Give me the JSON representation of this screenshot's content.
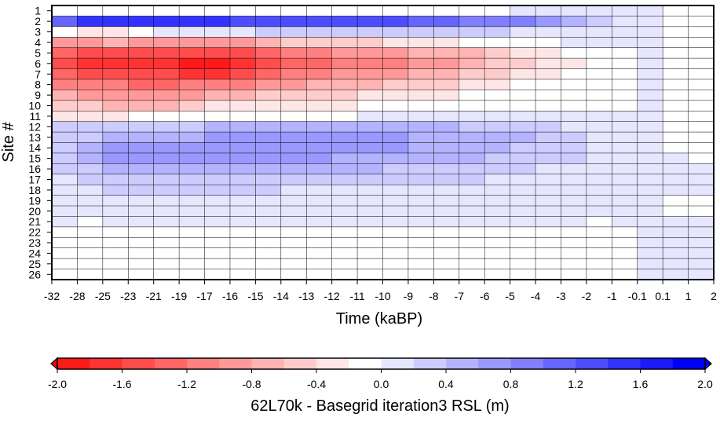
{
  "chart_data": {
    "type": "heatmap",
    "title": "",
    "xlabel": "Time (kaBP)",
    "ylabel": "Site #",
    "x_tick_labels": [
      "-32",
      "-28",
      "-25",
      "-23",
      "-21",
      "-19",
      "-17",
      "-16",
      "-15",
      "-14",
      "-13",
      "-12",
      "-11",
      "-10",
      "-9",
      "-8",
      "-7",
      "-6",
      "-5",
      "-4",
      "-3",
      "-2",
      "-1",
      "-0.1",
      "0.1",
      "1",
      "2"
    ],
    "y_tick_labels": [
      "1",
      "2",
      "3",
      "4",
      "5",
      "6",
      "7",
      "8",
      "9",
      "10",
      "11",
      "12",
      "13",
      "14",
      "15",
      "16",
      "17",
      "18",
      "19",
      "20",
      "21",
      "22",
      "23",
      "24",
      "25",
      "26"
    ],
    "grid": true,
    "colorbar": {
      "label": "62L70k - Basegrid iteration3 RSL (m)",
      "min": -2.0,
      "max": 2.0,
      "step": 0.2,
      "tick_labels": [
        "-2.0",
        "-1.6",
        "-1.2",
        "-0.8",
        "-0.4",
        "0.0",
        "0.4",
        "0.8",
        "1.2",
        "1.6",
        "2.0"
      ],
      "colors": [
        "#ff0000",
        "#ff1a1a",
        "#ff3333",
        "#ff4d4d",
        "#ff6666",
        "#ff8080",
        "#ff9999",
        "#ffb3b3",
        "#ffcccc",
        "#ffe6e6",
        "#ffffff",
        "#e6e6ff",
        "#ccccff",
        "#b3b3ff",
        "#9999ff",
        "#8080ff",
        "#6666ff",
        "#4d4dff",
        "#3333ff",
        "#1a1aff",
        "#0000ff"
      ]
    },
    "values": [
      [
        -0.1,
        -0.1,
        -0.1,
        -0.1,
        -0.1,
        -0.1,
        -0.1,
        -0.1,
        -0.1,
        -0.1,
        -0.1,
        -0.1,
        -0.1,
        -0.1,
        -0.1,
        -0.1,
        -0.1,
        -0.1,
        0.1,
        0.1,
        0.1,
        0.1,
        0.1,
        0.1,
        -0.1,
        -0.1
      ],
      [
        1.1,
        1.5,
        1.5,
        1.5,
        1.5,
        1.5,
        1.5,
        1.3,
        1.3,
        1.3,
        1.3,
        1.3,
        1.3,
        1.3,
        1.1,
        1.1,
        0.9,
        0.9,
        0.9,
        0.7,
        0.5,
        0.3,
        0.1,
        0.1,
        -0.1,
        -0.1
      ],
      [
        -0.1,
        -0.3,
        -0.3,
        -0.1,
        0.1,
        0.1,
        0.1,
        0.1,
        0.3,
        0.3,
        0.3,
        0.3,
        0.3,
        0.3,
        0.3,
        0.3,
        0.3,
        0.3,
        0.1,
        0.1,
        0.1,
        0.1,
        0.1,
        0.1,
        -0.1,
        -0.1
      ],
      [
        -0.9,
        -0.9,
        -0.7,
        -0.9,
        -0.9,
        -0.9,
        -0.9,
        -0.9,
        -0.7,
        -0.5,
        -0.5,
        -0.5,
        -0.5,
        -0.3,
        -0.3,
        -0.3,
        -0.1,
        -0.1,
        -0.1,
        -0.1,
        0.1,
        0.1,
        0.1,
        0.1,
        -0.1,
        -0.1
      ],
      [
        -1.3,
        -1.5,
        -1.5,
        -1.5,
        -1.5,
        -1.5,
        -1.5,
        -1.5,
        -1.3,
        -1.1,
        -1.1,
        -0.9,
        -0.9,
        -0.9,
        -0.7,
        -0.7,
        -0.7,
        -0.5,
        -0.3,
        -0.3,
        -0.1,
        -0.1,
        -0.1,
        0.1,
        -0.1,
        -0.1
      ],
      [
        -1.5,
        -1.7,
        -1.7,
        -1.7,
        -1.7,
        -1.9,
        -1.9,
        -1.7,
        -1.5,
        -1.3,
        -1.3,
        -1.1,
        -1.1,
        -1.1,
        -0.9,
        -0.9,
        -0.7,
        -0.5,
        -0.5,
        -0.3,
        -0.3,
        -0.1,
        -0.1,
        0.1,
        -0.1,
        -0.1
      ],
      [
        -1.3,
        -1.5,
        -1.5,
        -1.5,
        -1.5,
        -1.7,
        -1.7,
        -1.5,
        -1.3,
        -1.1,
        -1.1,
        -0.9,
        -0.9,
        -0.9,
        -0.7,
        -0.7,
        -0.5,
        -0.5,
        -0.3,
        -0.3,
        -0.1,
        -0.1,
        -0.1,
        0.1,
        -0.1,
        -0.1
      ],
      [
        -1.1,
        -1.1,
        -1.1,
        -1.3,
        -1.3,
        -1.1,
        -1.1,
        -1.1,
        -0.9,
        -0.9,
        -0.7,
        -0.7,
        -0.7,
        -0.5,
        -0.5,
        -0.5,
        -0.3,
        -0.3,
        -0.1,
        -0.1,
        -0.1,
        -0.1,
        -0.1,
        0.1,
        -0.1,
        -0.1
      ],
      [
        -0.7,
        -0.9,
        -0.9,
        -0.9,
        -0.9,
        -0.9,
        -0.7,
        -0.7,
        -0.5,
        -0.5,
        -0.5,
        -0.5,
        -0.3,
        -0.3,
        -0.3,
        -0.3,
        -0.1,
        -0.1,
        -0.1,
        -0.1,
        -0.1,
        -0.1,
        -0.1,
        0.1,
        -0.1,
        -0.1
      ],
      [
        -0.5,
        -0.5,
        -0.7,
        -0.7,
        -0.7,
        -0.5,
        -0.3,
        -0.3,
        -0.3,
        -0.3,
        -0.3,
        -0.3,
        -0.1,
        -0.1,
        -0.1,
        -0.1,
        -0.1,
        -0.1,
        -0.1,
        -0.1,
        -0.1,
        -0.1,
        -0.1,
        0.1,
        -0.1,
        -0.1
      ],
      [
        -0.3,
        -0.3,
        -0.3,
        -0.1,
        -0.1,
        -0.1,
        -0.1,
        -0.1,
        -0.1,
        -0.1,
        -0.1,
        -0.1,
        0.1,
        0.1,
        0.1,
        0.1,
        0.1,
        0.1,
        0.1,
        0.1,
        0.1,
        0.1,
        0.1,
        0.1,
        -0.1,
        -0.1
      ],
      [
        0.3,
        0.3,
        0.3,
        0.3,
        0.3,
        0.3,
        0.5,
        0.5,
        0.5,
        0.5,
        0.5,
        0.5,
        0.5,
        0.5,
        0.5,
        0.5,
        0.3,
        0.3,
        0.3,
        0.3,
        0.1,
        0.1,
        0.1,
        0.1,
        -0.1,
        -0.1
      ],
      [
        0.3,
        0.3,
        0.5,
        0.5,
        0.5,
        0.5,
        0.7,
        0.7,
        0.7,
        0.7,
        0.7,
        0.7,
        0.7,
        0.7,
        0.5,
        0.5,
        0.5,
        0.5,
        0.5,
        0.3,
        0.3,
        0.1,
        0.1,
        0.1,
        -0.1,
        -0.1
      ],
      [
        0.3,
        0.5,
        0.7,
        0.7,
        0.7,
        0.7,
        0.7,
        0.7,
        0.7,
        0.7,
        0.7,
        0.7,
        0.7,
        0.7,
        0.5,
        0.5,
        0.5,
        0.5,
        0.3,
        0.3,
        0.3,
        0.1,
        0.1,
        0.1,
        -0.1,
        -0.1
      ],
      [
        0.3,
        0.5,
        0.7,
        0.7,
        0.7,
        0.7,
        0.7,
        0.7,
        0.7,
        0.7,
        0.7,
        0.5,
        0.5,
        0.5,
        0.5,
        0.5,
        0.5,
        0.3,
        0.3,
        0.3,
        0.3,
        0.1,
        0.1,
        0.1,
        0.1,
        -0.1
      ],
      [
        0.3,
        0.3,
        0.5,
        0.5,
        0.5,
        0.5,
        0.5,
        0.5,
        0.5,
        0.5,
        0.5,
        0.5,
        0.5,
        0.3,
        0.3,
        0.3,
        0.3,
        0.3,
        0.3,
        0.1,
        0.1,
        0.1,
        0.1,
        0.1,
        0.1,
        0.1
      ],
      [
        0.1,
        0.3,
        0.3,
        0.3,
        0.3,
        0.3,
        0.3,
        0.3,
        0.3,
        0.3,
        0.3,
        0.3,
        0.3,
        0.3,
        0.3,
        0.3,
        0.3,
        0.1,
        0.1,
        0.1,
        0.1,
        0.1,
        0.1,
        0.1,
        0.1,
        0.1
      ],
      [
        0.1,
        0.1,
        0.3,
        0.3,
        0.3,
        0.3,
        0.3,
        0.3,
        0.3,
        0.1,
        0.1,
        0.1,
        0.1,
        0.1,
        0.1,
        0.1,
        0.1,
        0.1,
        0.1,
        0.1,
        0.1,
        0.1,
        0.1,
        0.1,
        0.1,
        0.1
      ],
      [
        0.1,
        0.1,
        0.1,
        0.1,
        0.1,
        0.1,
        0.1,
        0.1,
        0.1,
        0.1,
        0.1,
        0.1,
        0.1,
        0.1,
        0.1,
        0.1,
        0.1,
        0.1,
        0.1,
        0.1,
        0.1,
        0.1,
        0.1,
        0.1,
        -0.1,
        -0.1
      ],
      [
        0.1,
        0.1,
        0.1,
        0.1,
        0.1,
        0.1,
        0.1,
        0.1,
        0.1,
        0.1,
        0.1,
        0.1,
        0.1,
        0.1,
        0.1,
        0.1,
        0.1,
        0.1,
        0.1,
        0.1,
        0.1,
        0.1,
        0.1,
        0.1,
        -0.1,
        -0.1
      ],
      [
        0.1,
        -0.1,
        0.1,
        0.1,
        0.1,
        0.1,
        0.1,
        0.1,
        0.1,
        0.1,
        0.1,
        0.1,
        0.1,
        0.1,
        0.1,
        0.1,
        0.1,
        0.1,
        0.1,
        0.1,
        0.1,
        -0.1,
        0.1,
        0.1,
        0.1,
        0.1
      ],
      [
        -0.1,
        -0.1,
        -0.1,
        -0.1,
        -0.1,
        -0.1,
        -0.1,
        -0.1,
        -0.1,
        -0.1,
        -0.1,
        -0.1,
        -0.1,
        -0.1,
        -0.1,
        -0.1,
        -0.1,
        -0.1,
        -0.1,
        -0.1,
        -0.1,
        -0.1,
        -0.1,
        0.1,
        0.1,
        0.1
      ],
      [
        -0.1,
        -0.1,
        -0.1,
        -0.1,
        -0.1,
        -0.1,
        -0.1,
        -0.1,
        -0.1,
        -0.1,
        -0.1,
        -0.1,
        -0.1,
        -0.1,
        -0.1,
        -0.1,
        -0.1,
        -0.1,
        -0.1,
        -0.1,
        -0.1,
        -0.1,
        -0.1,
        0.1,
        0.1,
        0.1
      ],
      [
        -0.1,
        -0.1,
        -0.1,
        -0.1,
        -0.1,
        -0.1,
        -0.1,
        -0.1,
        -0.1,
        -0.1,
        -0.1,
        -0.1,
        -0.1,
        -0.1,
        -0.1,
        -0.1,
        -0.1,
        -0.1,
        -0.1,
        -0.1,
        -0.1,
        -0.1,
        -0.1,
        0.1,
        0.1,
        0.1
      ],
      [
        -0.1,
        -0.1,
        -0.1,
        -0.1,
        -0.1,
        -0.1,
        -0.1,
        -0.1,
        -0.1,
        -0.1,
        -0.1,
        -0.1,
        -0.1,
        -0.1,
        -0.1,
        -0.1,
        -0.1,
        -0.1,
        -0.1,
        -0.1,
        -0.1,
        -0.1,
        -0.1,
        0.1,
        0.1,
        0.1
      ],
      [
        -0.1,
        -0.1,
        -0.1,
        -0.1,
        -0.1,
        -0.1,
        -0.1,
        -0.1,
        -0.1,
        -0.1,
        -0.1,
        -0.1,
        -0.1,
        -0.1,
        -0.1,
        -0.1,
        -0.1,
        -0.1,
        -0.1,
        -0.1,
        -0.1,
        -0.1,
        -0.1,
        0.1,
        0.1,
        0.1
      ]
    ]
  }
}
